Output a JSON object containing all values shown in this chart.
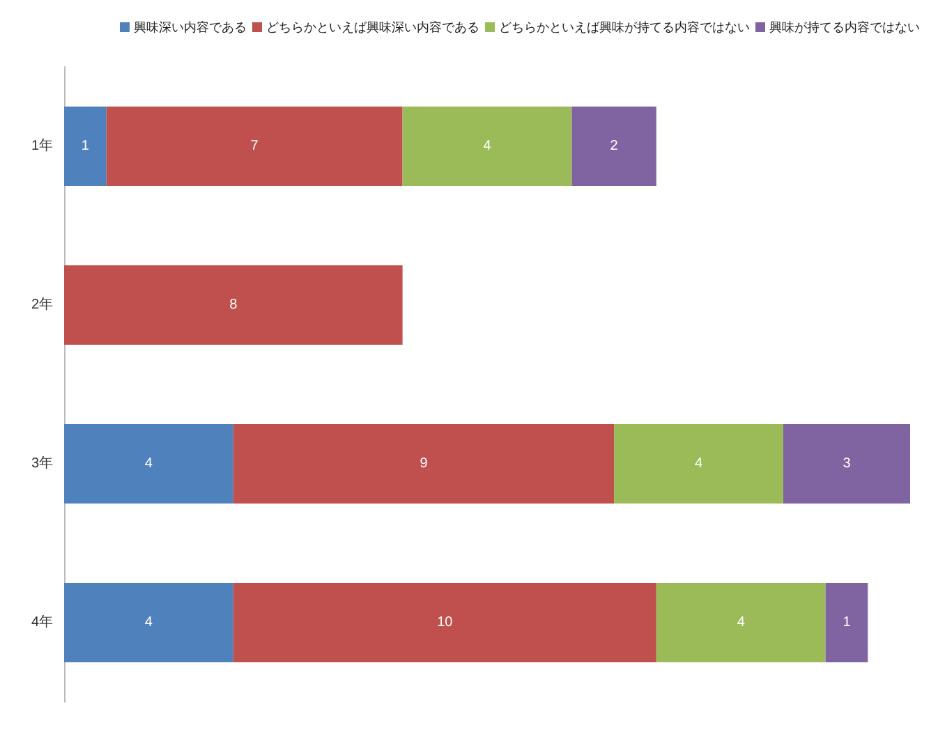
{
  "chart_data": {
    "type": "bar",
    "orientation": "horizontal",
    "stacked": true,
    "data_labels": true,
    "legend": "top right",
    "categories": [
      "1年",
      "2年",
      "3年",
      "4年"
    ],
    "series": [
      {
        "name": "興味深い内容である",
        "color": "#4f81bd",
        "values": [
          1,
          null,
          4,
          4
        ]
      },
      {
        "name": "どちらかといえば興味深い内容である",
        "color": "#c0504d",
        "values": [
          7,
          8,
          9,
          10
        ]
      },
      {
        "name": "どちらかといえば興味が持てる内容ではない",
        "color": "#9bbb59",
        "values": [
          4,
          null,
          4,
          4
        ]
      },
      {
        "name": "興味が持てる内容ではない",
        "color": "#8064a2",
        "values": [
          2,
          null,
          3,
          1
        ]
      }
    ]
  }
}
